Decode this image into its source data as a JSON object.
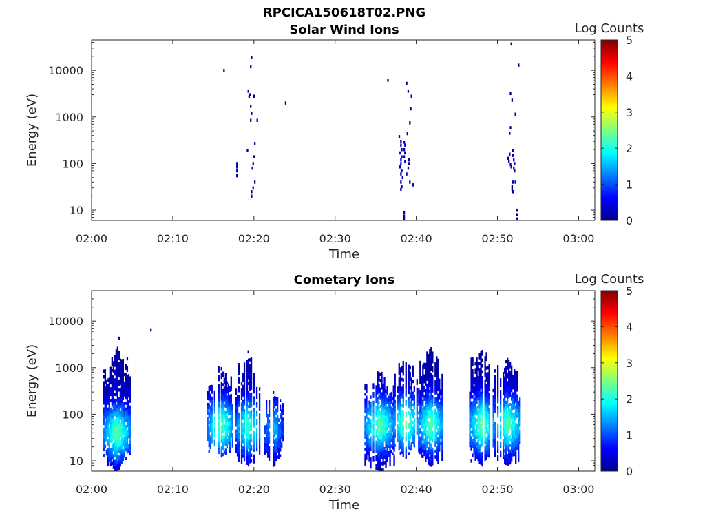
{
  "figure_title": "RPCICA150618T02.PNG",
  "chart_data": [
    {
      "type": "heatmap",
      "title": "Solar Wind Ions",
      "xlabel": "Time",
      "ylabel": "Energy (eV)",
      "x_tick_labels": [
        "02:00",
        "02:10",
        "02:20",
        "02:30",
        "02:40",
        "02:50",
        "03:00"
      ],
      "x_ticks_minutes": [
        0,
        10,
        20,
        30,
        40,
        50,
        60
      ],
      "xlim_minutes": [
        0,
        62
      ],
      "y_scale": "log",
      "ylim": [
        6,
        45000
      ],
      "y_tick_labels": [
        "10",
        "100",
        "1000",
        "10000"
      ],
      "y_ticks": [
        10,
        100,
        1000,
        10000
      ],
      "colorbar": {
        "label": "Log Counts",
        "ticks": [
          "0",
          "1",
          "2",
          "3",
          "4",
          "5"
        ],
        "range": [
          0,
          5
        ],
        "colormap": "jet"
      },
      "cells": [
        [
          16.3,
          10000,
          0.1
        ],
        [
          17.9,
          100,
          0.2
        ],
        [
          17.9,
          85,
          0.2
        ],
        [
          17.9,
          70,
          0.3
        ],
        [
          17.9,
          55,
          0.2
        ],
        [
          19.3,
          3600,
          0.1
        ],
        [
          19.5,
          3000,
          0.2
        ],
        [
          19.4,
          2700,
          0.1
        ],
        [
          19.6,
          1700,
          0.1
        ],
        [
          19.7,
          1200,
          0.1
        ],
        [
          19.6,
          850,
          0.1
        ],
        [
          19.7,
          19000,
          0.1
        ],
        [
          19.6,
          12000,
          0.1
        ],
        [
          20.0,
          2800,
          0.1
        ],
        [
          20.4,
          850,
          0.1
        ],
        [
          20.1,
          270,
          0.1
        ],
        [
          20.0,
          140,
          0.1
        ],
        [
          19.2,
          190,
          0.1
        ],
        [
          19.9,
          100,
          0.2
        ],
        [
          19.8,
          80,
          0.2
        ],
        [
          20.1,
          40,
          0.1
        ],
        [
          19.9,
          30,
          0.1
        ],
        [
          19.7,
          25,
          0.2
        ],
        [
          19.7,
          20,
          0.2
        ],
        [
          23.9,
          2000,
          0.1
        ],
        [
          36.5,
          6200,
          0.1
        ],
        [
          38.8,
          5300,
          0.1
        ],
        [
          39.0,
          3600,
          0.1
        ],
        [
          39.4,
          2800,
          0.1
        ],
        [
          39.3,
          1500,
          0.1
        ],
        [
          39.2,
          750,
          0.1
        ],
        [
          38.9,
          440,
          0.1
        ],
        [
          37.9,
          380,
          0.2
        ],
        [
          38.1,
          300,
          0.2
        ],
        [
          38.1,
          250,
          0.3
        ],
        [
          38.2,
          200,
          0.3
        ],
        [
          38.0,
          170,
          0.4
        ],
        [
          38.2,
          140,
          0.3
        ],
        [
          38.1,
          120,
          0.4
        ],
        [
          38.1,
          100,
          0.3
        ],
        [
          38.0,
          85,
          0.3
        ],
        [
          38.2,
          70,
          0.3
        ],
        [
          38.1,
          60,
          0.2
        ],
        [
          38.3,
          50,
          0.3
        ],
        [
          38.1,
          40,
          0.2
        ],
        [
          38.2,
          32,
          0.2
        ],
        [
          38.1,
          28,
          0.2
        ],
        [
          38.5,
          290,
          0.2
        ],
        [
          38.6,
          250,
          0.2
        ],
        [
          38.5,
          200,
          0.3
        ],
        [
          38.6,
          170,
          0.2
        ],
        [
          38.5,
          140,
          0.2
        ],
        [
          38.6,
          110,
          0.3
        ],
        [
          38.8,
          60,
          0.2
        ],
        [
          39.1,
          100,
          0.2
        ],
        [
          39.1,
          120,
          0.2
        ],
        [
          39.0,
          80,
          0.1
        ],
        [
          39.2,
          40,
          0.1
        ],
        [
          39.6,
          35,
          0.2
        ],
        [
          38.5,
          9,
          0.2
        ],
        [
          38.5,
          7.5,
          0.2
        ],
        [
          38.5,
          6.5,
          0.2
        ],
        [
          51.7,
          37000,
          0.1
        ],
        [
          52.6,
          13000,
          0.1
        ],
        [
          51.6,
          3200,
          0.1
        ],
        [
          51.8,
          2300,
          0.1
        ],
        [
          52.2,
          1150,
          0.1
        ],
        [
          51.6,
          590,
          0.2
        ],
        [
          51.5,
          450,
          0.2
        ],
        [
          51.5,
          160,
          0.2
        ],
        [
          51.3,
          130,
          0.3
        ],
        [
          51.4,
          110,
          0.2
        ],
        [
          51.6,
          95,
          0.2
        ],
        [
          51.7,
          85,
          0.2
        ],
        [
          51.9,
          190,
          0.2
        ],
        [
          51.9,
          150,
          0.3
        ],
        [
          52.0,
          120,
          0.2
        ],
        [
          52.1,
          100,
          0.2
        ],
        [
          52.0,
          80,
          0.2
        ],
        [
          52.1,
          70,
          0.2
        ],
        [
          51.9,
          40,
          0.2
        ],
        [
          52.2,
          40,
          0.2
        ],
        [
          51.8,
          32,
          0.2
        ],
        [
          51.8,
          28,
          0.2
        ],
        [
          51.9,
          25,
          0.2
        ],
        [
          52.4,
          10,
          0.2
        ],
        [
          52.4,
          8,
          0.2
        ],
        [
          52.4,
          6.5,
          0.2
        ]
      ]
    },
    {
      "type": "heatmap",
      "title": "Cometary Ions",
      "xlabel": "Time",
      "ylabel": "Energy (eV)",
      "x_tick_labels": [
        "02:00",
        "02:10",
        "02:20",
        "02:30",
        "02:40",
        "02:50",
        "03:00"
      ],
      "x_ticks_minutes": [
        0,
        10,
        20,
        30,
        40,
        50,
        60
      ],
      "xlim_minutes": [
        0,
        62
      ],
      "y_scale": "log",
      "ylim": [
        6,
        45000
      ],
      "y_tick_labels": [
        "10",
        "100",
        "1000",
        "10000"
      ],
      "y_ticks": [
        10,
        100,
        1000,
        10000
      ],
      "colorbar": {
        "label": "Log Counts",
        "ticks": [
          "0",
          "1",
          "2",
          "3",
          "4",
          "5"
        ],
        "range": [
          0,
          5
        ],
        "colormap": "jet"
      },
      "cells": [
        [
          3.4,
          4300,
          0.2
        ],
        [
          7.3,
          6500,
          0.1
        ],
        [
          19.3,
          2200,
          0.2
        ]
      ],
      "bursts": [
        {
          "t0": 1.5,
          "t1": 4.8,
          "e_lo": 6,
          "e_hi": 3000,
          "peak": 2.2,
          "core": 40,
          "seed": 11
        },
        {
          "t0": 14.3,
          "t1": 17.5,
          "e_lo": 12,
          "e_hi": 1200,
          "peak": 2.2,
          "core": 55,
          "seed": 23
        },
        {
          "t0": 17.8,
          "t1": 20.8,
          "e_lo": 8,
          "e_hi": 2200,
          "peak": 2.0,
          "core": 55,
          "seed": 37
        },
        {
          "t0": 21.2,
          "t1": 23.6,
          "e_lo": 8,
          "e_hi": 350,
          "peak": 1.4,
          "core": 50,
          "seed": 41
        },
        {
          "t0": 33.7,
          "t1": 37.3,
          "e_lo": 6,
          "e_hi": 900,
          "peak": 2.2,
          "core": 60,
          "seed": 53
        },
        {
          "t0": 37.2,
          "t1": 40.2,
          "e_lo": 12,
          "e_hi": 1800,
          "peak": 2.3,
          "core": 65,
          "seed": 67
        },
        {
          "t0": 40.3,
          "t1": 43.3,
          "e_lo": 8,
          "e_hi": 3000,
          "peak": 2.2,
          "core": 60,
          "seed": 71
        },
        {
          "t0": 46.6,
          "t1": 49.6,
          "e_lo": 8,
          "e_hi": 3000,
          "peak": 2.3,
          "core": 60,
          "seed": 83
        },
        {
          "t0": 49.7,
          "t1": 52.9,
          "e_lo": 8,
          "e_hi": 1800,
          "peak": 2.2,
          "core": 60,
          "seed": 97
        }
      ]
    }
  ]
}
